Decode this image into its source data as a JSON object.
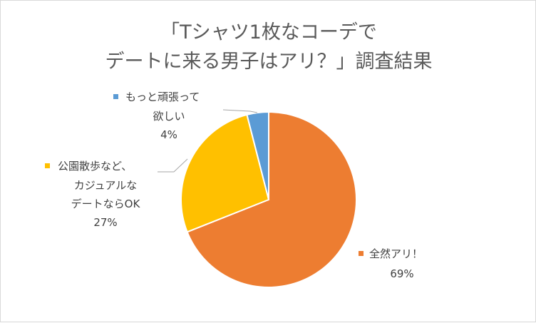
{
  "chart_data": {
    "type": "pie",
    "title_lines": [
      "「Tシャツ1枚なコーデで",
      "デートに来る男子はアリ？」調査結果"
    ],
    "slices": [
      {
        "label_lines": [
          "全然アリ！"
        ],
        "percent_label": "69%",
        "value": 69,
        "color": "#ED7D31"
      },
      {
        "label_lines": [
          "公園散歩など、",
          "カジュアルな",
          "デートならOK"
        ],
        "percent_label": "27%",
        "value": 27,
        "color": "#FFC000"
      },
      {
        "label_lines": [
          "もっと頑張って",
          "欲しい"
        ],
        "percent_label": "4%",
        "value": 4,
        "color": "#5B9BD5"
      }
    ],
    "start_angle": "12 o'clock",
    "direction": "clockwise",
    "legend": "none (data labels with category names)"
  }
}
